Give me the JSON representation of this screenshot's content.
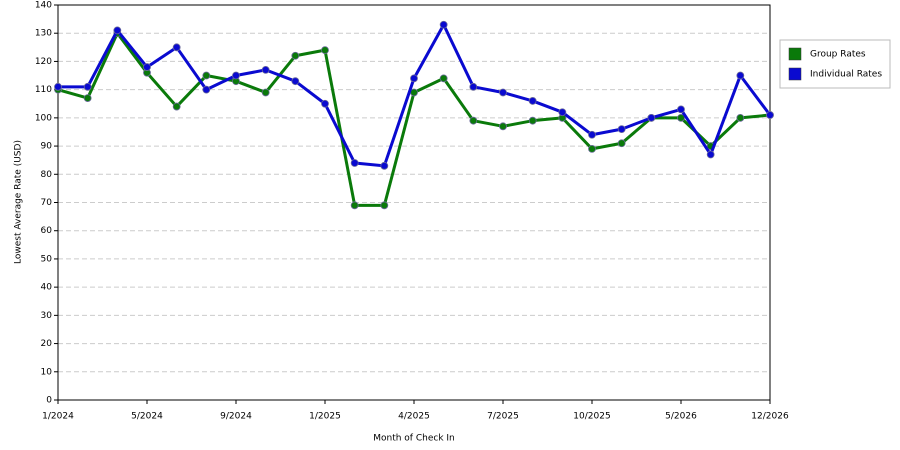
{
  "chart_data": {
    "type": "line",
    "x_label": "Month of Check In",
    "y_label": "Lowest Average Rate (USD)",
    "categories": [
      "1/2024",
      null,
      null,
      "5/2024",
      null,
      null,
      "9/2024",
      null,
      null,
      "1/2025",
      null,
      null,
      "4/2025",
      null,
      null,
      "7/2025",
      null,
      null,
      "10/2025",
      null,
      null,
      "5/2026",
      null,
      null,
      "12/2026"
    ],
    "series": [
      {
        "name": "Group Rates",
        "color": "#0a7a0a",
        "values": [
          110,
          107,
          130,
          116,
          104,
          115,
          113,
          109,
          122,
          124,
          69,
          69,
          109,
          114,
          99,
          97,
          99,
          100,
          89,
          91,
          100,
          100,
          90,
          100,
          101
        ]
      },
      {
        "name": "Individual Rates",
        "color": "#0a0ad0",
        "values": [
          111,
          111,
          131,
          118,
          125,
          110,
          115,
          117,
          113,
          105,
          84,
          83,
          114,
          133,
          111,
          109,
          106,
          102,
          94,
          96,
          100,
          103,
          87,
          115,
          101
        ]
      }
    ],
    "ylim": [
      0,
      140
    ],
    "yticks": [
      0,
      10,
      20,
      30,
      40,
      50,
      60,
      70,
      80,
      90,
      100,
      110,
      120,
      130,
      140
    ],
    "grid": true,
    "legend": "right"
  }
}
